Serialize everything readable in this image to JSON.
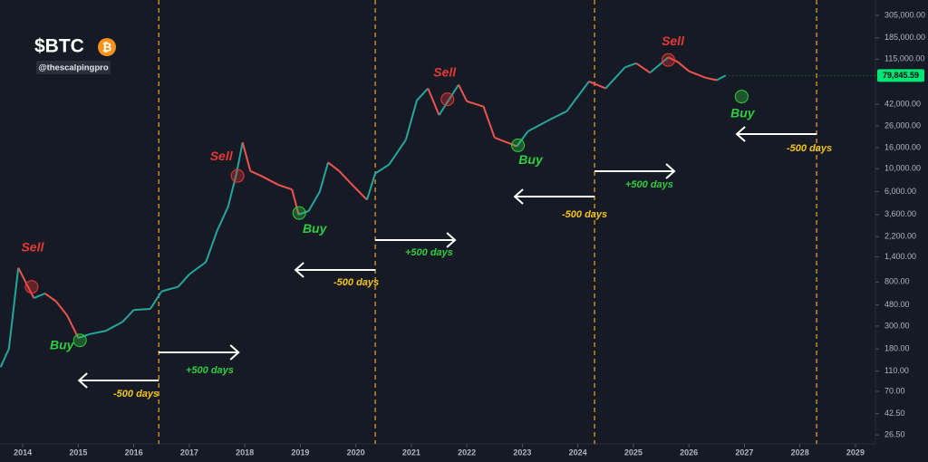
{
  "header": {
    "title": "$BTC",
    "icon": "₿",
    "author": "@thescalpingpro"
  },
  "chart_data": {
    "type": "candlestick",
    "log_scale": true,
    "up_color": "#26a69a",
    "down_color": "#ef5350",
    "x": [
      2013.6,
      2013.75,
      2013.92,
      2014.05,
      2014.2,
      2014.4,
      2014.6,
      2014.8,
      2015.0,
      2015.2,
      2015.5,
      2015.8,
      2016.0,
      2016.3,
      2016.5,
      2016.8,
      2017.0,
      2017.3,
      2017.5,
      2017.7,
      2017.85,
      2017.96,
      2018.1,
      2018.3,
      2018.6,
      2018.85,
      2018.97,
      2019.15,
      2019.35,
      2019.5,
      2019.7,
      2019.9,
      2020.2,
      2020.35,
      2020.6,
      2020.9,
      2021.1,
      2021.3,
      2021.5,
      2021.85,
      2022.0,
      2022.3,
      2022.5,
      2022.9,
      2023.1,
      2023.5,
      2023.8,
      2024.2,
      2024.5,
      2024.85,
      2025.05,
      2025.3,
      2025.63,
      2025.8,
      2026.0,
      2026.3,
      2026.5,
      2026.66
    ],
    "values": [
      120,
      180,
      1100,
      800,
      560,
      620,
      520,
      380,
      230,
      250,
      270,
      330,
      430,
      440,
      650,
      720,
      950,
      1250,
      2500,
      4300,
      9000,
      18000,
      9500,
      8500,
      7000,
      6300,
      3600,
      3900,
      6000,
      11500,
      9500,
      7300,
      5000,
      9000,
      11000,
      19000,
      46000,
      60000,
      33000,
      65000,
      45000,
      40000,
      20000,
      16500,
      23000,
      30000,
      36000,
      70000,
      60000,
      96000,
      105000,
      85000,
      120000,
      108000,
      88000,
      76000,
      72000,
      79845.59
    ],
    "last_price": 79845.59,
    "last_price_label": "79,845.59",
    "last_price_color": "#00e676",
    "xlim": [
      2013.59,
      2029.36
    ],
    "xticks": [
      2014,
      2015,
      2016,
      2017,
      2018,
      2019,
      2020,
      2021,
      2022,
      2023,
      2024,
      2025,
      2026,
      2027,
      2028,
      2029
    ],
    "ylim": [
      21.7,
      430000
    ],
    "yticks": [
      {
        "value": 305000,
        "label": "305,000.00"
      },
      {
        "value": 185000,
        "label": "185,000.00"
      },
      {
        "value": 115000,
        "label": "115,000.00"
      },
      {
        "value": 42000,
        "label": "42,000.00"
      },
      {
        "value": 26000,
        "label": "26,000.00"
      },
      {
        "value": 16000,
        "label": "16,000.00"
      },
      {
        "value": 10000,
        "label": "10,000.00"
      },
      {
        "value": 6000,
        "label": "6,000.00"
      },
      {
        "value": 3600,
        "label": "3,600.00"
      },
      {
        "value": 2200,
        "label": "2,200.00"
      },
      {
        "value": 1400,
        "label": "1,400.00"
      },
      {
        "value": 800,
        "label": "800.00"
      },
      {
        "value": 480,
        "label": "480.00"
      },
      {
        "value": 300,
        "label": "300.00"
      },
      {
        "value": 180,
        "label": "180.00"
      },
      {
        "value": 110,
        "label": "110.00"
      },
      {
        "value": 70,
        "label": "70.00"
      },
      {
        "value": 42.5,
        "label": "42.50"
      },
      {
        "value": 26.5,
        "label": "26.50"
      }
    ],
    "halvings": [
      2016.45,
      2020.35,
      2024.3,
      2028.3
    ],
    "halving_color": "#f5a623",
    "annotations": [
      {
        "text": "Sell",
        "x": 2014.16,
        "y": 718,
        "color": "#e53935"
      },
      {
        "text": "Buy",
        "x": 2015.03,
        "y": 218,
        "color": "#2ecc40"
      },
      {
        "text": "Sell",
        "x": 2017.87,
        "y": 8530,
        "color": "#e53935"
      },
      {
        "text": "Buy",
        "x": 2018.98,
        "y": 3725,
        "color": "#2ecc40"
      },
      {
        "text": "Sell",
        "x": 2021.65,
        "y": 47000,
        "color": "#e53935"
      },
      {
        "text": "Buy",
        "x": 2022.92,
        "y": 16850,
        "color": "#2ecc40"
      },
      {
        "text": "Sell",
        "x": 2025.63,
        "y": 113000,
        "color": "#e53935"
      },
      {
        "text": "Buy",
        "x": 2026.95,
        "y": 50000,
        "color": "#2ecc40"
      }
    ],
    "cycle_labels": [
      {
        "plus": "+500 days",
        "minus": "-500 days"
      },
      {
        "plus": "+500 days",
        "minus": "-500 days"
      },
      {
        "plus": "+500 days",
        "minus": "-500 days"
      },
      {
        "minus": "-500 days"
      }
    ],
    "plus_color": "#2ecc40",
    "minus_color": "#f5c518"
  }
}
